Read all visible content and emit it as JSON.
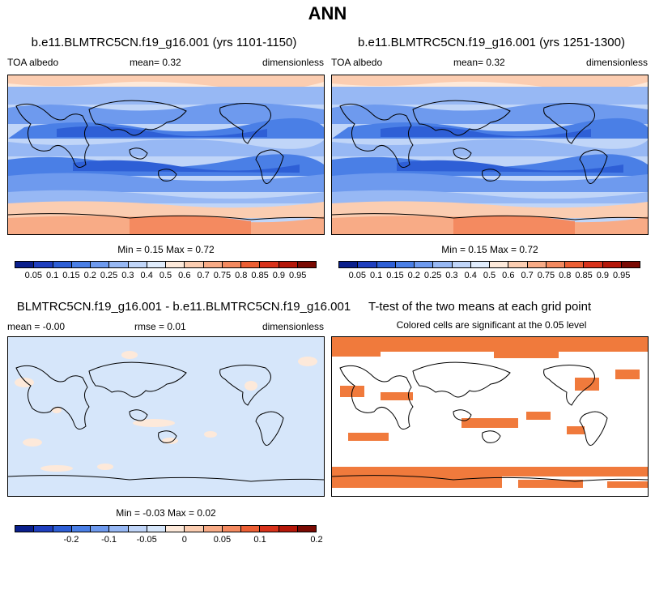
{
  "main_title": "ANN",
  "panels": [
    {
      "title": "b.e11.BLMTRC5CN.f19_g16.001 (yrs 1101-1150)",
      "left_label": "TOA albedo",
      "mean_text": "mean=   0.32",
      "units": "dimensionless",
      "minmax_text": "Min =   0.15 Max =   0.72"
    },
    {
      "title": "b.e11.BLMTRC5CN.f19_g16.001 (yrs 1251-1300)",
      "left_label": "TOA albedo",
      "mean_text": "mean=   0.32",
      "units": "dimensionless",
      "minmax_text": "Min =   0.15 Max =   0.72"
    },
    {
      "title": "BLMTRC5CN.f19_g16.001 - b.e11.BLMTRC5CN.f19_g16.001",
      "left_label": "mean =  -0.00",
      "mean_text": "rmse =   0.01",
      "units": "dimensionless",
      "minmax_text": "Min =  -0.03 Max =   0.02"
    },
    {
      "title": "T-test of the two means at each grid point",
      "subtitle": "Colored cells are significant at the 0.05 level"
    }
  ],
  "chart_data": [
    {
      "type": "heatmap",
      "variable": "TOA albedo",
      "colorbar": {
        "labels": [
          "0.05",
          "0.1",
          "0.15",
          "0.2",
          "0.25",
          "0.3",
          "0.4",
          "0.5",
          "0.6",
          "0.7",
          "0.75",
          "0.8",
          "0.85",
          "0.9",
          "0.95"
        ],
        "colors": [
          "#0a1f8c",
          "#1f3fbf",
          "#2e5fd6",
          "#4a7fe6",
          "#6e9aee",
          "#97b8f4",
          "#c0d5f8",
          "#e0ecfc",
          "#fde9da",
          "#fbcdb1",
          "#f8ab86",
          "#f48a60",
          "#ec5f34",
          "#d8321b",
          "#b51709",
          "#7a0a03"
        ]
      },
      "min": 0.15,
      "max": 0.72,
      "mean": 0.32
    },
    {
      "type": "heatmap",
      "variable": "TOA albedo",
      "min": 0.15,
      "max": 0.72,
      "mean": 0.32
    },
    {
      "type": "heatmap",
      "variable": "difference",
      "colorbar": {
        "labels": [
          "-0.2",
          "-0.1",
          "-0.05",
          "0",
          "0.05",
          "0.1",
          "0.2"
        ],
        "colors": [
          "#0a1f8c",
          "#1f3fbf",
          "#2e5fd6",
          "#4a7fe6",
          "#6e9aee",
          "#97b8f4",
          "#c0d5f8",
          "#d6e6fa",
          "#fde9da",
          "#fbcdb1",
          "#f8ab86",
          "#f48a60",
          "#ec5f34",
          "#d8321b",
          "#b51709",
          "#7a0a03"
        ]
      },
      "min": -0.03,
      "max": 0.02,
      "mean": -0.0,
      "rmse": 0.01
    },
    {
      "type": "heatmap",
      "variable": "t-test significance",
      "significant_color": "#f07a3c"
    }
  ]
}
